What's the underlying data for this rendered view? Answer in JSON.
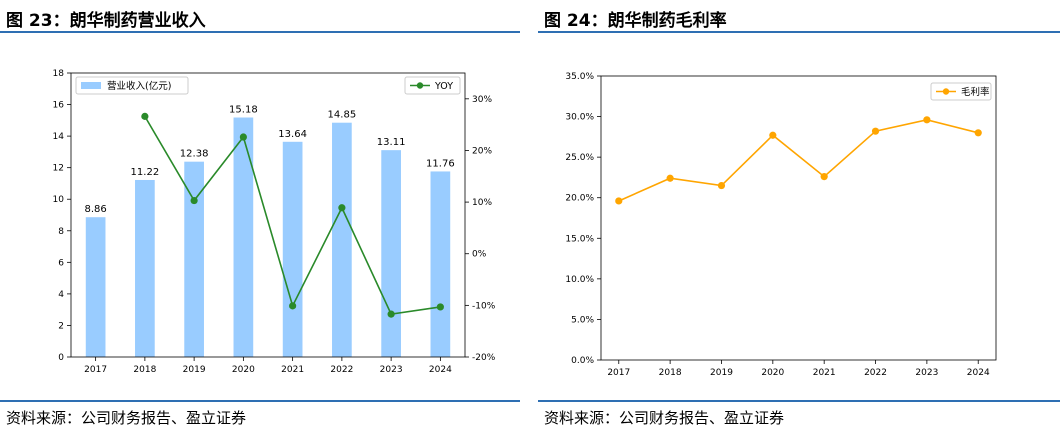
{
  "left_panel": {
    "title": "图 23：朗华制药营业收入",
    "source": "资料来源：公司财务报告、盈立证券"
  },
  "right_panel": {
    "title": "图 24：朗华制药毛利率",
    "source": "资料来源：公司财务报告、盈立证券"
  },
  "colors": {
    "rule": "#2e6fb3",
    "bar": "#99ccff",
    "yoy_line": "#2a8a2a",
    "margin_line": "#ffa500"
  },
  "chart_data": [
    {
      "type": "bar",
      "title": "",
      "categories": [
        "2017",
        "2018",
        "2019",
        "2020",
        "2021",
        "2022",
        "2023",
        "2024"
      ],
      "series": [
        {
          "name": "营业收入(亿元)",
          "type": "bar",
          "axis": "left",
          "values": [
            8.86,
            11.22,
            12.38,
            15.18,
            13.64,
            14.85,
            13.11,
            11.76
          ],
          "labels": [
            "8.86",
            "11.22",
            "12.38",
            "15.18",
            "13.64",
            "14.85",
            "13.11",
            "11.76"
          ]
        },
        {
          "name": "YOY",
          "type": "line",
          "axis": "right",
          "values": [
            null,
            26.6,
            10.3,
            22.6,
            -10.1,
            8.9,
            -11.7,
            -10.3
          ]
        }
      ],
      "ylim": [
        0,
        18
      ],
      "yticks": [
        "0",
        "2",
        "4",
        "6",
        "8",
        "10",
        "12",
        "14",
        "16",
        "18"
      ],
      "y2lim": [
        -20,
        35
      ],
      "y2ticks": [
        "-20%",
        "-10%",
        "0%",
        "10%",
        "20%",
        "30%"
      ],
      "legend": [
        "upper-left",
        "upper-right"
      ],
      "grid": false
    },
    {
      "type": "line",
      "title": "",
      "categories": [
        "2017",
        "2018",
        "2019",
        "2020",
        "2021",
        "2022",
        "2023",
        "2024"
      ],
      "series": [
        {
          "name": "毛利率",
          "values": [
            19.6,
            22.4,
            21.5,
            27.7,
            22.6,
            28.2,
            29.6,
            28.0
          ]
        }
      ],
      "ylim": [
        0,
        35
      ],
      "yticks": [
        "0.0%",
        "5.0%",
        "10.0%",
        "15.0%",
        "20.0%",
        "25.0%",
        "30.0%",
        "35.0%"
      ],
      "legend": "upper-right",
      "grid": false
    }
  ]
}
